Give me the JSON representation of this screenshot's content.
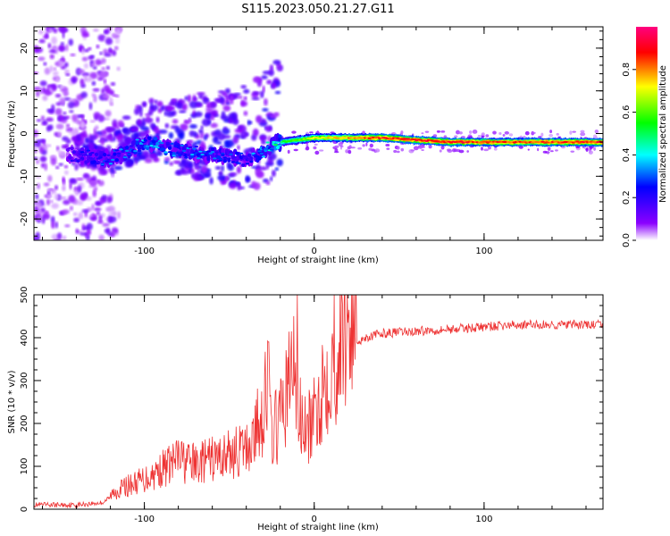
{
  "title": "S115.2023.050.21.27.G11",
  "chart_data": [
    {
      "type": "heatmap",
      "xlabel": "Height of straight line (km)",
      "ylabel": "Frequency (Hz)",
      "xlim": [
        -165,
        170
      ],
      "ylim": [
        -25,
        25
      ],
      "x_ticks": [
        -100,
        0,
        100
      ],
      "y_ticks": [
        20,
        10,
        0,
        -10,
        -20
      ],
      "colorbar": {
        "label": "Normalized spectral amplitude",
        "range": [
          0,
          1
        ],
        "ticks": [
          "0.0",
          "0.2",
          "0.4",
          "0.6",
          "0.8"
        ],
        "colors": [
          "#ffffff",
          "#8b00ff",
          "#0000ff",
          "#00ffff",
          "#00ff00",
          "#ffff00",
          "#ff0000",
          "#ff007f"
        ]
      },
      "ridge": [
        {
          "x": -140,
          "y": -5,
          "amp": 0.2
        },
        {
          "x": -120,
          "y": -6,
          "amp": 0.3
        },
        {
          "x": -100,
          "y": -2,
          "amp": 0.35
        },
        {
          "x": -80,
          "y": -4,
          "amp": 0.3
        },
        {
          "x": -60,
          "y": -5,
          "amp": 0.3
        },
        {
          "x": -40,
          "y": -6,
          "amp": 0.25
        },
        {
          "x": -20,
          "y": -2,
          "amp": 0.5
        },
        {
          "x": 0,
          "y": -1,
          "amp": 0.7
        },
        {
          "x": 40,
          "y": -1,
          "amp": 0.9
        },
        {
          "x": 80,
          "y": -2,
          "amp": 0.9
        },
        {
          "x": 120,
          "y": -2,
          "amp": 0.85
        },
        {
          "x": 170,
          "y": -2,
          "amp": 0.9
        }
      ]
    },
    {
      "type": "line",
      "xlabel": "Height of straight line (km)",
      "ylabel": "SNR (10 * v/v)",
      "xlim": [
        -165,
        170
      ],
      "ylim": [
        0,
        500
      ],
      "x_ticks": [
        -100,
        0,
        100
      ],
      "y_ticks": [
        500,
        400,
        300,
        200,
        100,
        0
      ],
      "color": "#ee3333",
      "series": [
        {
          "x": [
            -165,
            -140,
            -125,
            -115,
            -100,
            -90,
            -80,
            -70,
            -60,
            -50,
            -40,
            -35,
            -30,
            -28,
            -25,
            -20,
            -15,
            -12,
            -10,
            -5,
            0,
            5,
            10,
            15,
            20,
            25,
            30,
            40,
            60,
            80,
            100,
            120,
            140,
            160,
            170
          ],
          "y": [
            10,
            10,
            15,
            40,
            60,
            80,
            100,
            90,
            100,
            110,
            120,
            150,
            200,
            260,
            150,
            180,
            250,
            300,
            200,
            150,
            180,
            250,
            300,
            320,
            380,
            390,
            400,
            410,
            415,
            420,
            425,
            430,
            430,
            430,
            430
          ],
          "spikes": [
            {
              "x": -27,
              "y": 390
            },
            {
              "x": -10,
              "y": 500
            },
            {
              "x": -80,
              "y": 160
            }
          ]
        }
      ]
    }
  ]
}
